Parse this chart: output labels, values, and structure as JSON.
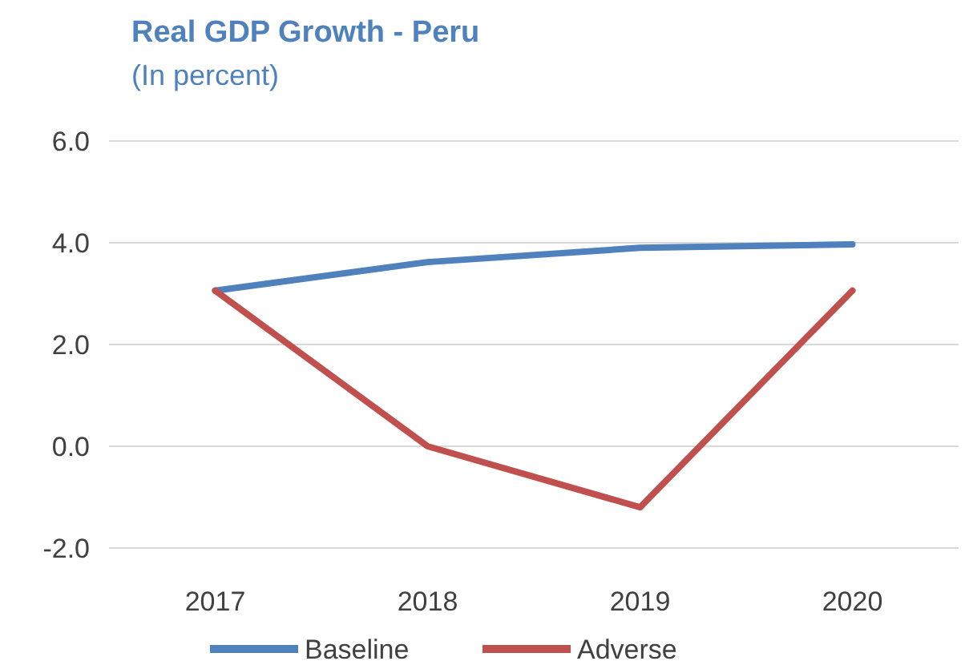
{
  "chart_data": {
    "type": "line",
    "title": "Real GDP Growth - Peru",
    "subtitle": "(In percent)",
    "categories": [
      "2017",
      "2018",
      "2019",
      "2020"
    ],
    "series": [
      {
        "name": "Baseline",
        "color": "#4f81bd",
        "values": [
          3.06,
          3.62,
          3.9,
          3.97
        ]
      },
      {
        "name": "Adverse",
        "color": "#c0504d",
        "values": [
          3.06,
          0.0,
          -1.2,
          3.06
        ]
      }
    ],
    "ylim": [
      -2,
      6
    ],
    "yticks": [
      {
        "value": -2,
        "label": "-2.0"
      },
      {
        "value": 0,
        "label": "0.0"
      },
      {
        "value": 2,
        "label": "2.0"
      },
      {
        "value": 4,
        "label": "4.0"
      },
      {
        "value": 6,
        "label": "6.0"
      }
    ],
    "grid": "y",
    "legend": "bottom",
    "marker": "none",
    "line_style": "solid"
  }
}
